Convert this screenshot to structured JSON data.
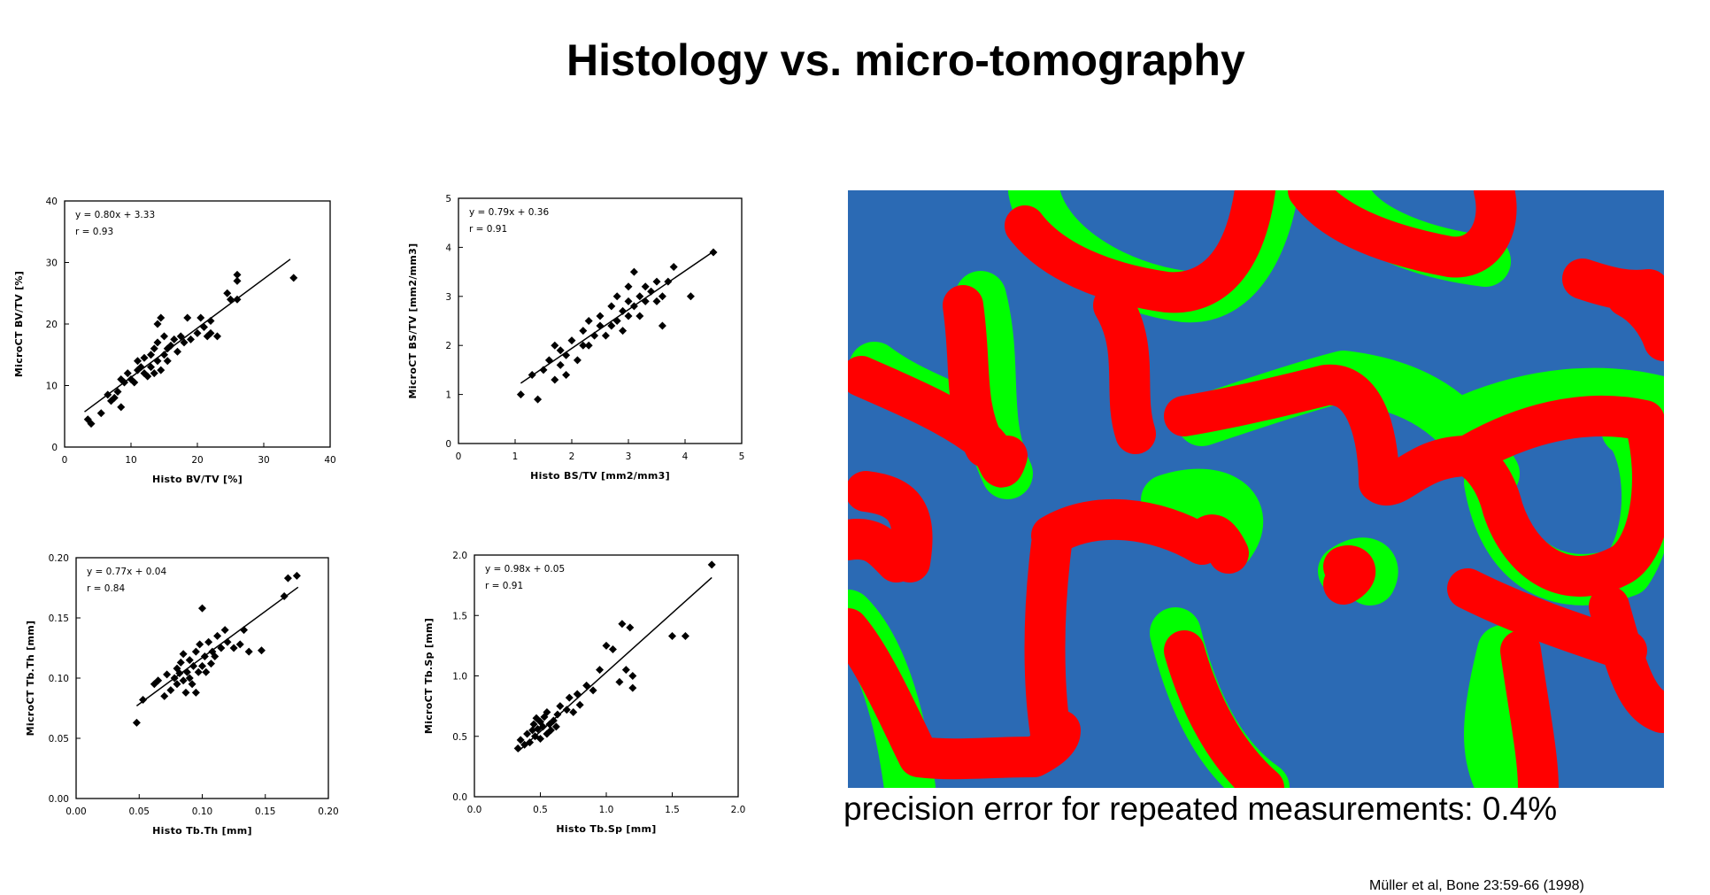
{
  "title": "Histology vs. micro-tomography",
  "caption": "precision error for repeated measurements: 0.4%",
  "reference": "Müller et al, Bone 23:59-66 (1998)",
  "colors": {
    "background": "#2b6ab4",
    "red": "#ff0000",
    "green": "#00ff00",
    "marker": "#000000"
  },
  "chart_data": [
    {
      "type": "scatter",
      "equation": "y = 0.80x + 3.33",
      "r": "r = 0.93",
      "xlabel": "Histo BV/TV [%]",
      "ylabel": "MicroCT BV/TV [%]",
      "xlim": [
        0,
        40
      ],
      "ylim": [
        0,
        40
      ],
      "xticks": [
        0,
        10,
        20,
        30,
        40
      ],
      "yticks": [
        0,
        10,
        20,
        30,
        40
      ],
      "xtick_labels": [
        "0",
        "10",
        "20",
        "30",
        "40"
      ],
      "ytick_labels": [
        "0",
        "10",
        "20",
        "30",
        "40"
      ],
      "fit": {
        "slope": 0.8,
        "intercept": 3.33,
        "x_range": [
          3,
          34
        ]
      },
      "points": [
        [
          3.5,
          4.5
        ],
        [
          4,
          3.8
        ],
        [
          5.5,
          5.5
        ],
        [
          6.5,
          8.5
        ],
        [
          7,
          7.5
        ],
        [
          7.5,
          8.0
        ],
        [
          8,
          9
        ],
        [
          8.5,
          6.5
        ],
        [
          8.5,
          11
        ],
        [
          9,
          10.5
        ],
        [
          9.5,
          12
        ],
        [
          10,
          11
        ],
        [
          10.5,
          10.5
        ],
        [
          11,
          12.5
        ],
        [
          11,
          14
        ],
        [
          11.5,
          13
        ],
        [
          12,
          12
        ],
        [
          12,
          14.5
        ],
        [
          12.5,
          11.5
        ],
        [
          13,
          13
        ],
        [
          13,
          15
        ],
        [
          13.5,
          12
        ],
        [
          13.5,
          16
        ],
        [
          14,
          14
        ],
        [
          14,
          17
        ],
        [
          14,
          20
        ],
        [
          14.5,
          12.5
        ],
        [
          14.5,
          21
        ],
        [
          15,
          15
        ],
        [
          15,
          18
        ],
        [
          15.5,
          14
        ],
        [
          15.5,
          16
        ],
        [
          16,
          16.5
        ],
        [
          16.5,
          17.5
        ],
        [
          17,
          15.5
        ],
        [
          17.5,
          18
        ],
        [
          18,
          17
        ],
        [
          18.5,
          21
        ],
        [
          19,
          17.5
        ],
        [
          20,
          18.5
        ],
        [
          20.5,
          21
        ],
        [
          21,
          19.5
        ],
        [
          21.5,
          18
        ],
        [
          22,
          20.5
        ],
        [
          22,
          18.5
        ],
        [
          23,
          18
        ],
        [
          24.5,
          25
        ],
        [
          25,
          24
        ],
        [
          26,
          24
        ],
        [
          26,
          27
        ],
        [
          26,
          28
        ],
        [
          34.5,
          27.5
        ]
      ]
    },
    {
      "type": "scatter",
      "equation": "y = 0.79x + 0.36",
      "r": "r = 0.91",
      "xlabel": "Histo BS/TV [mm2/mm3]",
      "ylabel": "MicroCT BS/TV [mm2/mm3]",
      "xlim": [
        0,
        5
      ],
      "ylim": [
        0,
        5
      ],
      "xticks": [
        0,
        1,
        2,
        3,
        4,
        5
      ],
      "yticks": [
        0,
        1,
        2,
        3,
        4,
        5
      ],
      "xtick_labels": [
        "0",
        "1",
        "2",
        "3",
        "4",
        "5"
      ],
      "ytick_labels": [
        "0",
        "1",
        "2",
        "3",
        "4",
        "5"
      ],
      "fit": {
        "slope": 0.79,
        "intercept": 0.36,
        "x_range": [
          1.1,
          4.5
        ]
      },
      "points": [
        [
          1.1,
          1.0
        ],
        [
          1.3,
          1.4
        ],
        [
          1.4,
          0.9
        ],
        [
          1.5,
          1.5
        ],
        [
          1.6,
          1.7
        ],
        [
          1.7,
          2.0
        ],
        [
          1.7,
          1.3
        ],
        [
          1.8,
          1.6
        ],
        [
          1.8,
          1.9
        ],
        [
          1.9,
          1.4
        ],
        [
          1.9,
          1.8
        ],
        [
          2.0,
          2.1
        ],
        [
          2.1,
          1.7
        ],
        [
          2.2,
          2.0
        ],
        [
          2.2,
          2.3
        ],
        [
          2.3,
          2.0
        ],
        [
          2.3,
          2.5
        ],
        [
          2.4,
          2.2
        ],
        [
          2.5,
          2.4
        ],
        [
          2.5,
          2.6
        ],
        [
          2.6,
          2.2
        ],
        [
          2.7,
          2.4
        ],
        [
          2.7,
          2.8
        ],
        [
          2.8,
          2.5
        ],
        [
          2.8,
          3.0
        ],
        [
          2.9,
          2.7
        ],
        [
          2.9,
          2.3
        ],
        [
          3.0,
          2.6
        ],
        [
          3.0,
          2.9
        ],
        [
          3.0,
          3.2
        ],
        [
          3.1,
          2.8
        ],
        [
          3.1,
          3.5
        ],
        [
          3.2,
          2.6
        ],
        [
          3.2,
          3.0
        ],
        [
          3.3,
          2.9
        ],
        [
          3.3,
          3.2
        ],
        [
          3.4,
          3.1
        ],
        [
          3.5,
          2.9
        ],
        [
          3.5,
          3.3
        ],
        [
          3.6,
          2.4
        ],
        [
          3.6,
          3.0
        ],
        [
          3.7,
          3.3
        ],
        [
          3.8,
          3.6
        ],
        [
          4.1,
          3.0
        ],
        [
          4.5,
          3.9
        ]
      ]
    },
    {
      "type": "scatter",
      "equation": "y = 0.77x + 0.04",
      "r": "r = 0.84",
      "xlabel": "Histo Tb.Th [mm]",
      "ylabel": "MicroCT Tb.Th [mm]",
      "xlim": [
        0,
        0.2
      ],
      "ylim": [
        0,
        0.2
      ],
      "xticks": [
        0,
        0.05,
        0.1,
        0.15,
        0.2
      ],
      "yticks": [
        0,
        0.05,
        0.1,
        0.15,
        0.2
      ],
      "xtick_labels": [
        "0.00",
        "0.05",
        "0.10",
        "0.15",
        "0.20"
      ],
      "ytick_labels": [
        "0.00",
        "0.05",
        "0.10",
        "0.15",
        "0.20"
      ],
      "fit": {
        "slope": 0.77,
        "intercept": 0.04,
        "x_range": [
          0.048,
          0.176
        ]
      },
      "points": [
        [
          0.048,
          0.063
        ],
        [
          0.053,
          0.082
        ],
        [
          0.062,
          0.095
        ],
        [
          0.065,
          0.098
        ],
        [
          0.07,
          0.085
        ],
        [
          0.072,
          0.103
        ],
        [
          0.075,
          0.09
        ],
        [
          0.078,
          0.1
        ],
        [
          0.08,
          0.095
        ],
        [
          0.08,
          0.108
        ],
        [
          0.082,
          0.104
        ],
        [
          0.083,
          0.113
        ],
        [
          0.085,
          0.098
        ],
        [
          0.085,
          0.12
        ],
        [
          0.087,
          0.088
        ],
        [
          0.088,
          0.105
        ],
        [
          0.09,
          0.1
        ],
        [
          0.09,
          0.115
        ],
        [
          0.092,
          0.095
        ],
        [
          0.093,
          0.11
        ],
        [
          0.095,
          0.088
        ],
        [
          0.095,
          0.122
        ],
        [
          0.097,
          0.105
        ],
        [
          0.098,
          0.128
        ],
        [
          0.1,
          0.11
        ],
        [
          0.1,
          0.158
        ],
        [
          0.102,
          0.118
        ],
        [
          0.103,
          0.105
        ],
        [
          0.105,
          0.13
        ],
        [
          0.107,
          0.112
        ],
        [
          0.108,
          0.122
        ],
        [
          0.11,
          0.118
        ],
        [
          0.112,
          0.135
        ],
        [
          0.115,
          0.125
        ],
        [
          0.118,
          0.14
        ],
        [
          0.12,
          0.13
        ],
        [
          0.125,
          0.125
        ],
        [
          0.13,
          0.128
        ],
        [
          0.133,
          0.14
        ],
        [
          0.137,
          0.122
        ],
        [
          0.147,
          0.123
        ],
        [
          0.165,
          0.168
        ],
        [
          0.168,
          0.183
        ],
        [
          0.175,
          0.185
        ]
      ]
    },
    {
      "type": "scatter",
      "equation": "y = 0.98x + 0.05",
      "r": "r = 0.91",
      "xlabel": "Histo Tb.Sp [mm]",
      "ylabel": "MicroCT Tb.Sp [mm]",
      "xlim": [
        0,
        2.0
      ],
      "ylim": [
        0,
        2.0
      ],
      "xticks": [
        0,
        0.5,
        1.0,
        1.5,
        2.0
      ],
      "yticks": [
        0,
        0.5,
        1.0,
        1.5,
        2.0
      ],
      "xtick_labels": [
        "0.0",
        "0.5",
        "1.0",
        "1.5",
        "2.0"
      ],
      "ytick_labels": [
        "0.0",
        "0.5",
        "1.0",
        "1.5",
        "2.0"
      ],
      "fit": {
        "slope": 0.98,
        "intercept": 0.05,
        "x_range": [
          0.33,
          1.8
        ]
      },
      "points": [
        [
          0.33,
          0.4
        ],
        [
          0.35,
          0.47
        ],
        [
          0.38,
          0.43
        ],
        [
          0.4,
          0.52
        ],
        [
          0.42,
          0.45
        ],
        [
          0.44,
          0.55
        ],
        [
          0.45,
          0.6
        ],
        [
          0.46,
          0.5
        ],
        [
          0.47,
          0.65
        ],
        [
          0.48,
          0.56
        ],
        [
          0.5,
          0.62
        ],
        [
          0.5,
          0.48
        ],
        [
          0.52,
          0.58
        ],
        [
          0.53,
          0.66
        ],
        [
          0.55,
          0.52
        ],
        [
          0.55,
          0.7
        ],
        [
          0.57,
          0.6
        ],
        [
          0.58,
          0.55
        ],
        [
          0.6,
          0.63
        ],
        [
          0.62,
          0.58
        ],
        [
          0.63,
          0.68
        ],
        [
          0.65,
          0.75
        ],
        [
          0.7,
          0.72
        ],
        [
          0.72,
          0.82
        ],
        [
          0.75,
          0.7
        ],
        [
          0.78,
          0.85
        ],
        [
          0.8,
          0.76
        ],
        [
          0.85,
          0.92
        ],
        [
          0.9,
          0.88
        ],
        [
          0.95,
          1.05
        ],
        [
          1.0,
          1.25
        ],
        [
          1.05,
          1.22
        ],
        [
          1.1,
          0.95
        ],
        [
          1.12,
          1.43
        ],
        [
          1.15,
          1.05
        ],
        [
          1.18,
          1.4
        ],
        [
          1.2,
          1.0
        ],
        [
          1.2,
          0.9
        ],
        [
          1.5,
          1.33
        ],
        [
          1.6,
          1.33
        ],
        [
          1.8,
          1.92
        ]
      ]
    }
  ]
}
